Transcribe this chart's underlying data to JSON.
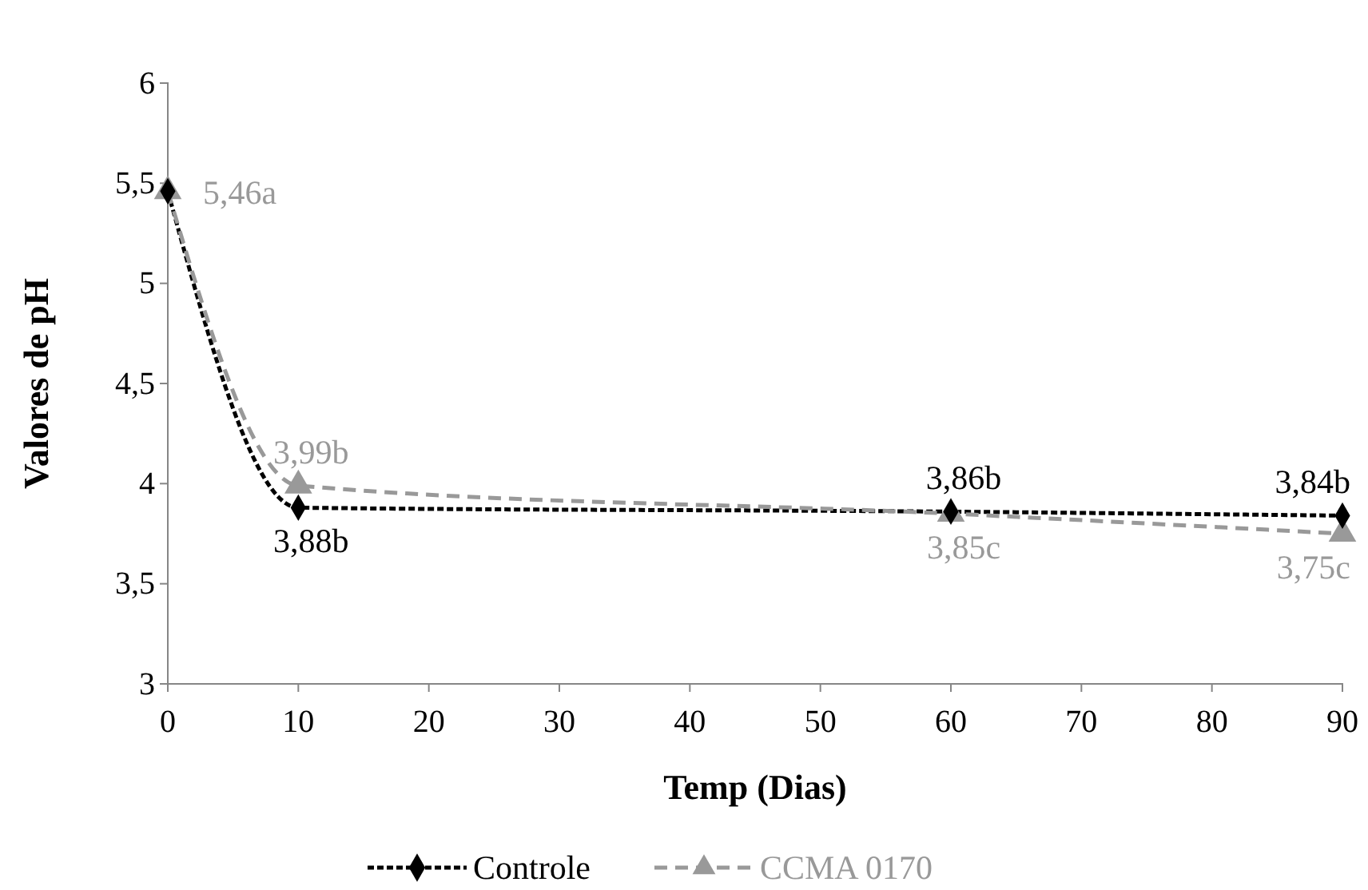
{
  "chart_data": {
    "type": "line",
    "xlabel": "Temp (Dias)",
    "ylabel": "Valores de pH",
    "x": [
      0,
      10,
      60,
      90
    ],
    "xlim": [
      0,
      90
    ],
    "xticks": [
      0,
      10,
      20,
      30,
      40,
      50,
      60,
      70,
      80,
      90
    ],
    "ylim": [
      3,
      6
    ],
    "yticks": [
      3,
      {
        "value": 3.5,
        "label": "3,5"
      },
      4,
      {
        "value": 4.5,
        "label": "4,5"
      },
      5,
      {
        "value": 5.5,
        "label": "5,5"
      },
      6
    ],
    "grid": false,
    "legend": "bottom",
    "series": [
      {
        "name": "Controle",
        "color": "#000000",
        "values": [
          5.46,
          3.88,
          3.86,
          3.84
        ],
        "marker": "diamond",
        "line_style": "dotted",
        "value_labels": [
          null,
          "3,88b",
          "3,86b",
          "3,84b"
        ]
      },
      {
        "name": "CCMA 0170",
        "color": "#999999",
        "values": [
          5.46,
          3.99,
          3.85,
          3.75
        ],
        "marker": "triangle",
        "line_style": "dashed",
        "value_labels": [
          "5,46a",
          "3,99b",
          "3,85c",
          "3,75c"
        ]
      }
    ]
  }
}
